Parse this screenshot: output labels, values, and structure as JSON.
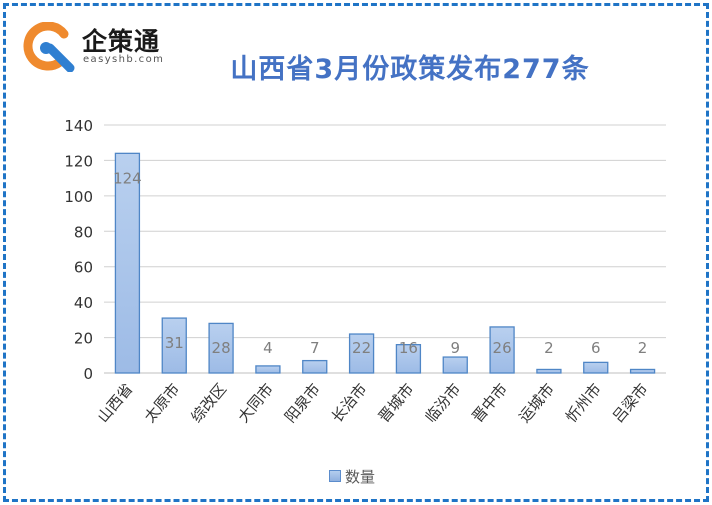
{
  "logo": {
    "name": "企策通",
    "domain": "easyshb.com",
    "colors": {
      "orange": "#ef8a2e",
      "blue": "#2f7fd1"
    }
  },
  "title": "山西省3月份政策发布277条",
  "chart_data": {
    "type": "bar",
    "categories": [
      "山西省",
      "太原市",
      "综改区",
      "大同市",
      "阳泉市",
      "长治市",
      "晋城市",
      "临汾市",
      "晋中市",
      "运城市",
      "忻州市",
      "吕梁市"
    ],
    "series": [
      {
        "name": "数量",
        "values": [
          124,
          31,
          28,
          4,
          7,
          22,
          16,
          9,
          26,
          2,
          6,
          2
        ]
      }
    ],
    "data_labels": [
      "124",
      "31",
      "28",
      "4",
      "7",
      "22",
      "16",
      "9",
      "26",
      "2",
      "6",
      "2"
    ],
    "ylim": [
      0,
      140
    ],
    "yticks": [
      "0",
      "20",
      "40",
      "60",
      "80",
      "100",
      "120",
      "140"
    ],
    "grid": true,
    "legend": "bottom",
    "colors": {
      "bar_fill": "#9dbbe6",
      "bar_edge": "#4f86c6",
      "grid": "#d0d0d0",
      "label": "#7f7f7f"
    }
  }
}
